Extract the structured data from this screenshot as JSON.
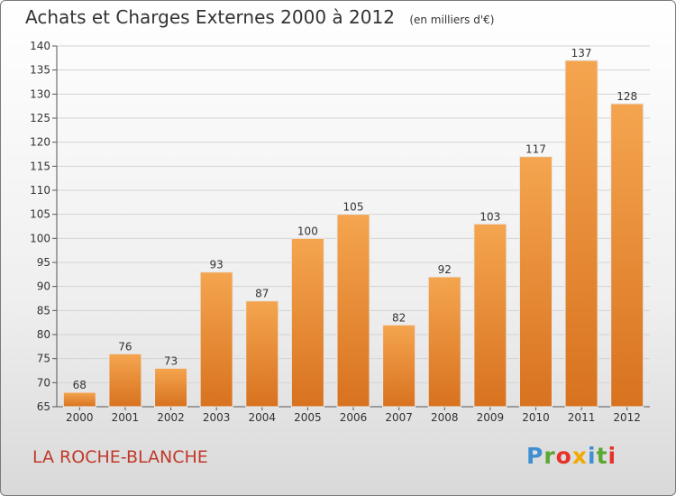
{
  "title": "Achats et Charges Externes 2000 à 2012",
  "subtitle": "(en milliers d'€)",
  "commune": "LA ROCHE-BLANCHE",
  "logo": [
    "P",
    "r",
    "o",
    "x",
    "i",
    "t",
    "i"
  ],
  "colors": {
    "bar_top": "#f5a54f",
    "bar_bottom": "#d8721f",
    "commune": "#c0392b"
  },
  "chart_data": {
    "type": "bar",
    "title": "Achats et Charges Externes 2000 à 2012",
    "subtitle": "(en milliers d'€)",
    "categories": [
      "2000",
      "2001",
      "2002",
      "2003",
      "2004",
      "2005",
      "2006",
      "2007",
      "2008",
      "2009",
      "2010",
      "2011",
      "2012"
    ],
    "values": [
      68,
      76,
      73,
      93,
      87,
      100,
      105,
      82,
      92,
      103,
      117,
      137,
      128
    ],
    "ylim": [
      65,
      140
    ],
    "yticks": [
      65,
      70,
      75,
      80,
      85,
      90,
      95,
      100,
      105,
      110,
      115,
      120,
      125,
      130,
      135,
      140
    ],
    "grid": true,
    "legend": "none"
  }
}
